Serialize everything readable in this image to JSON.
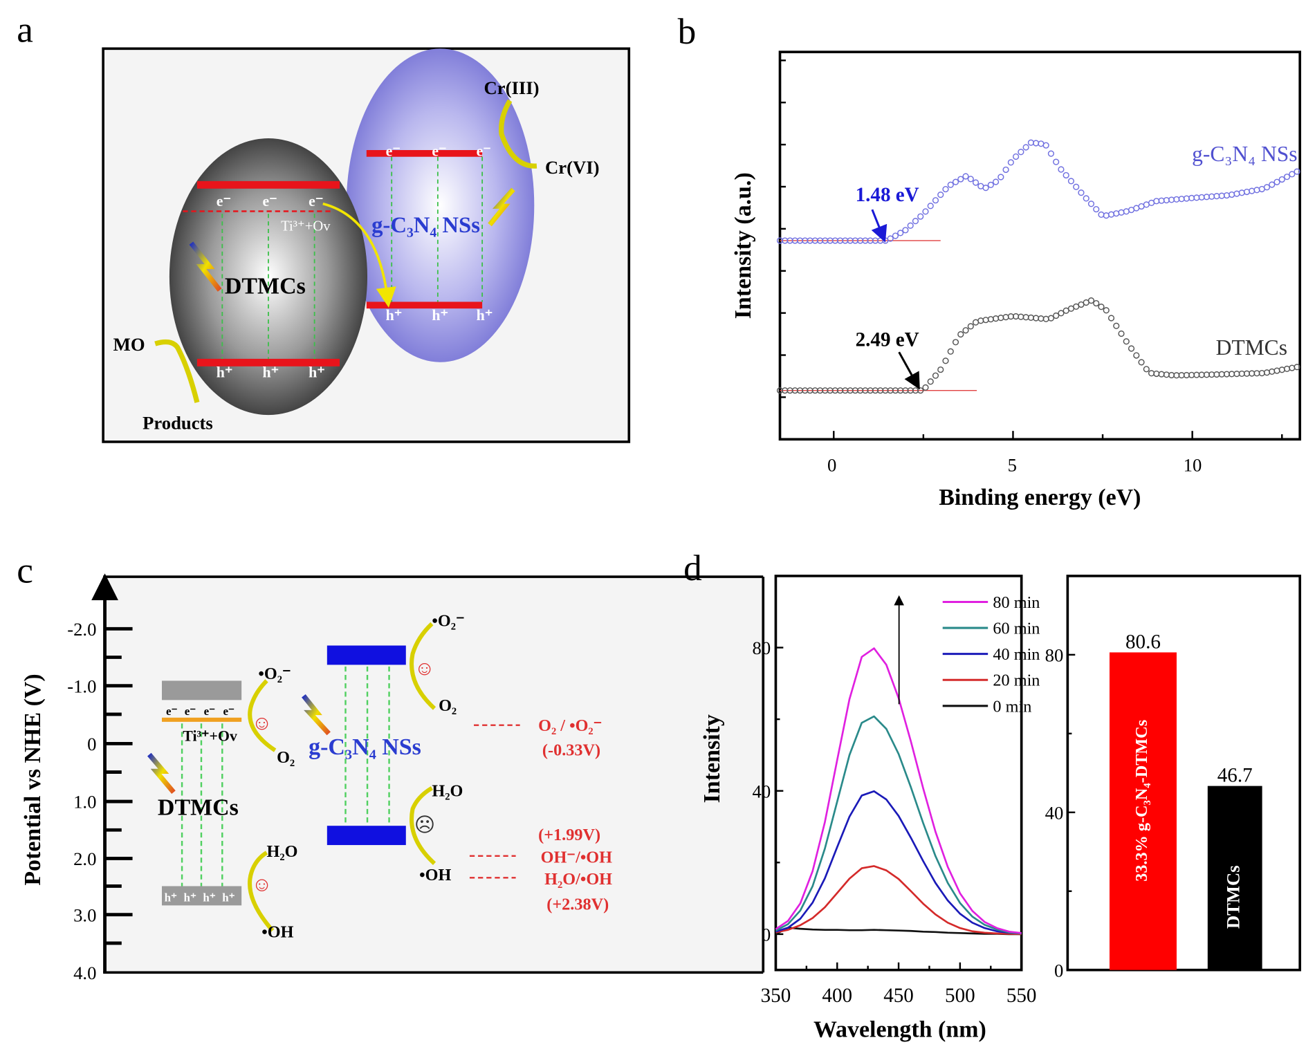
{
  "panel_labels": {
    "a": "a",
    "b": "b",
    "c": "c",
    "d": "d"
  },
  "panel_a": {
    "dtmcs": "DTMCs",
    "gc3n4": "g-C₃N₄ NSs",
    "e": "e⁻",
    "h": "h⁺",
    "ti_ov": "Ti³⁺+Ov",
    "cr3": "Cr(III)",
    "cr6": "Cr(VI)",
    "mo": "MO",
    "products": "Products",
    "colors": {
      "band": "#e8141b",
      "dtmcs_sphere": "#3a3a3a",
      "gc3n4_sphere": "#7b78d6",
      "arrow": "#f2e500"
    }
  },
  "panel_c": {
    "ylabel": "Potential vs NHE (V)",
    "ticks": [
      "-2.0",
      "-1.0",
      "0",
      "1.0",
      "2.0",
      "3.0",
      "4.0"
    ],
    "dtmcs": "DTMCs",
    "gc3n4": "g-C₃N₄ NSs",
    "ti_ov": "Ti³⁺+Ov",
    "e": "e⁻",
    "h": "h⁺",
    "o2_radical": "•O₂⁻",
    "o2": "O₂",
    "h2o": "H₂O",
    "oh_radical": "•OH",
    "o2_couple": "O₂ / •O₂⁻",
    "o2_potential": "(-0.33V)",
    "oh_potential": "(+1.99V)",
    "oh_couple": "OH⁻/•OH",
    "h2o_couple": "H₂O/•OH",
    "h2o_potential": "(+2.38V)",
    "happy": "☺",
    "sad": "☹"
  },
  "chart_data": [
    {
      "type": "scatter",
      "panel": "b",
      "xlabel": "Binding energy (eV)",
      "ylabel": "Intensity (a.u.)",
      "xlim": [
        -1.5,
        13
      ],
      "ylim": [
        0,
        10
      ],
      "xticks": [
        "0",
        "5",
        "10"
      ],
      "annotations": [
        {
          "text": "1.48 eV",
          "x": 1.48,
          "color": "#1a1ad6"
        },
        {
          "text": "2.49 eV",
          "x": 2.49,
          "color": "#000000"
        }
      ],
      "series": [
        {
          "name": "g-C₃N₄ NSs",
          "color": "#7070e0",
          "x": [
            -1.5,
            1.48,
            2.0,
            2.5,
            3.2,
            3.7,
            4.2,
            4.6,
            5.0,
            5.5,
            5.9,
            6.3,
            7.0,
            7.5,
            8.2,
            9.0,
            10.0,
            11.0,
            12.0,
            13.0
          ],
          "y": [
            5.13,
            5.13,
            5.4,
            5.82,
            6.54,
            6.8,
            6.47,
            6.69,
            7.23,
            7.66,
            7.62,
            7.01,
            6.26,
            5.76,
            5.89,
            6.15,
            6.23,
            6.3,
            6.47,
            6.95
          ]
        },
        {
          "name": "DTMCs",
          "color": "#555555",
          "x": [
            -1.5,
            2.49,
            3.0,
            3.5,
            4.0,
            5.0,
            6.0,
            6.5,
            7.2,
            7.6,
            8.2,
            8.8,
            9.5,
            10.5,
            12.0,
            13.0
          ],
          "y": [
            1.26,
            1.26,
            1.82,
            2.68,
            3.05,
            3.18,
            3.1,
            3.33,
            3.59,
            3.33,
            2.47,
            1.71,
            1.65,
            1.67,
            1.71,
            1.88
          ]
        }
      ]
    },
    {
      "type": "line",
      "panel": "d-left",
      "xlabel": "Wavelength (nm)",
      "ylabel": "Intensity",
      "xlim": [
        350,
        550
      ],
      "ylim": [
        -10,
        100
      ],
      "xticks": [
        "350",
        "400",
        "450",
        "500",
        "550"
      ],
      "yticks": [
        "0",
        "40",
        "80"
      ],
      "x": [
        350,
        360,
        370,
        380,
        390,
        400,
        410,
        420,
        430,
        440,
        450,
        460,
        470,
        480,
        490,
        500,
        510,
        520,
        530,
        540,
        550
      ],
      "series": [
        {
          "name": "80 min",
          "color": "#e020e0",
          "values": [
            1.4,
            3.7,
            8.6,
            17.6,
            31.3,
            48.6,
            65.6,
            77.4,
            79.8,
            75.2,
            65.9,
            53.8,
            40.7,
            28.6,
            18.8,
            11.4,
            6.5,
            3.4,
            1.7,
            0.7,
            0.3
          ]
        },
        {
          "name": "60 min",
          "color": "#2a8a8a",
          "values": [
            1.0,
            2.8,
            6.6,
            13.4,
            23.9,
            37.0,
            50.0,
            59.0,
            60.8,
            57.3,
            50.3,
            41.0,
            31.0,
            21.8,
            14.3,
            8.7,
            4.9,
            2.6,
            1.3,
            0.5,
            0.2
          ]
        },
        {
          "name": "40 min",
          "color": "#1a1ab8",
          "values": [
            0.7,
            1.8,
            4.3,
            8.8,
            15.6,
            24.3,
            32.8,
            38.7,
            39.9,
            37.6,
            33.0,
            26.9,
            20.4,
            14.3,
            9.4,
            5.7,
            3.2,
            1.7,
            0.8,
            0.4,
            0.2
          ]
        },
        {
          "name": "20 min",
          "color": "#d42a2a",
          "values": [
            0.5,
            1.2,
            2.5,
            4.5,
            7.5,
            11.5,
            15.5,
            18.4,
            19.0,
            17.8,
            15.4,
            12.0,
            8.5,
            5.5,
            3.2,
            1.7,
            0.8,
            0.4,
            0.2,
            0.1,
            0
          ]
        },
        {
          "name": "0 min",
          "color": "#111111",
          "values": [
            0,
            1.8,
            1.5,
            1.3,
            1.2,
            1.2,
            1.1,
            1.1,
            1.2,
            1.1,
            1.0,
            0.9,
            0.7,
            0.6,
            0.4,
            0.3,
            0.2,
            0.1,
            0.1,
            0,
            0
          ]
        }
      ]
    },
    {
      "type": "bar",
      "panel": "d-right",
      "categories": [
        "33.3% g-C₃N₄-DTMCs",
        "DTMCs"
      ],
      "values": [
        80.6,
        46.7
      ],
      "value_labels": [
        "80.6",
        "46.7"
      ],
      "colors": [
        "#ff0000",
        "#000000"
      ],
      "ylim": [
        0,
        100
      ],
      "yticks": [
        "0",
        "40",
        "80"
      ]
    }
  ]
}
